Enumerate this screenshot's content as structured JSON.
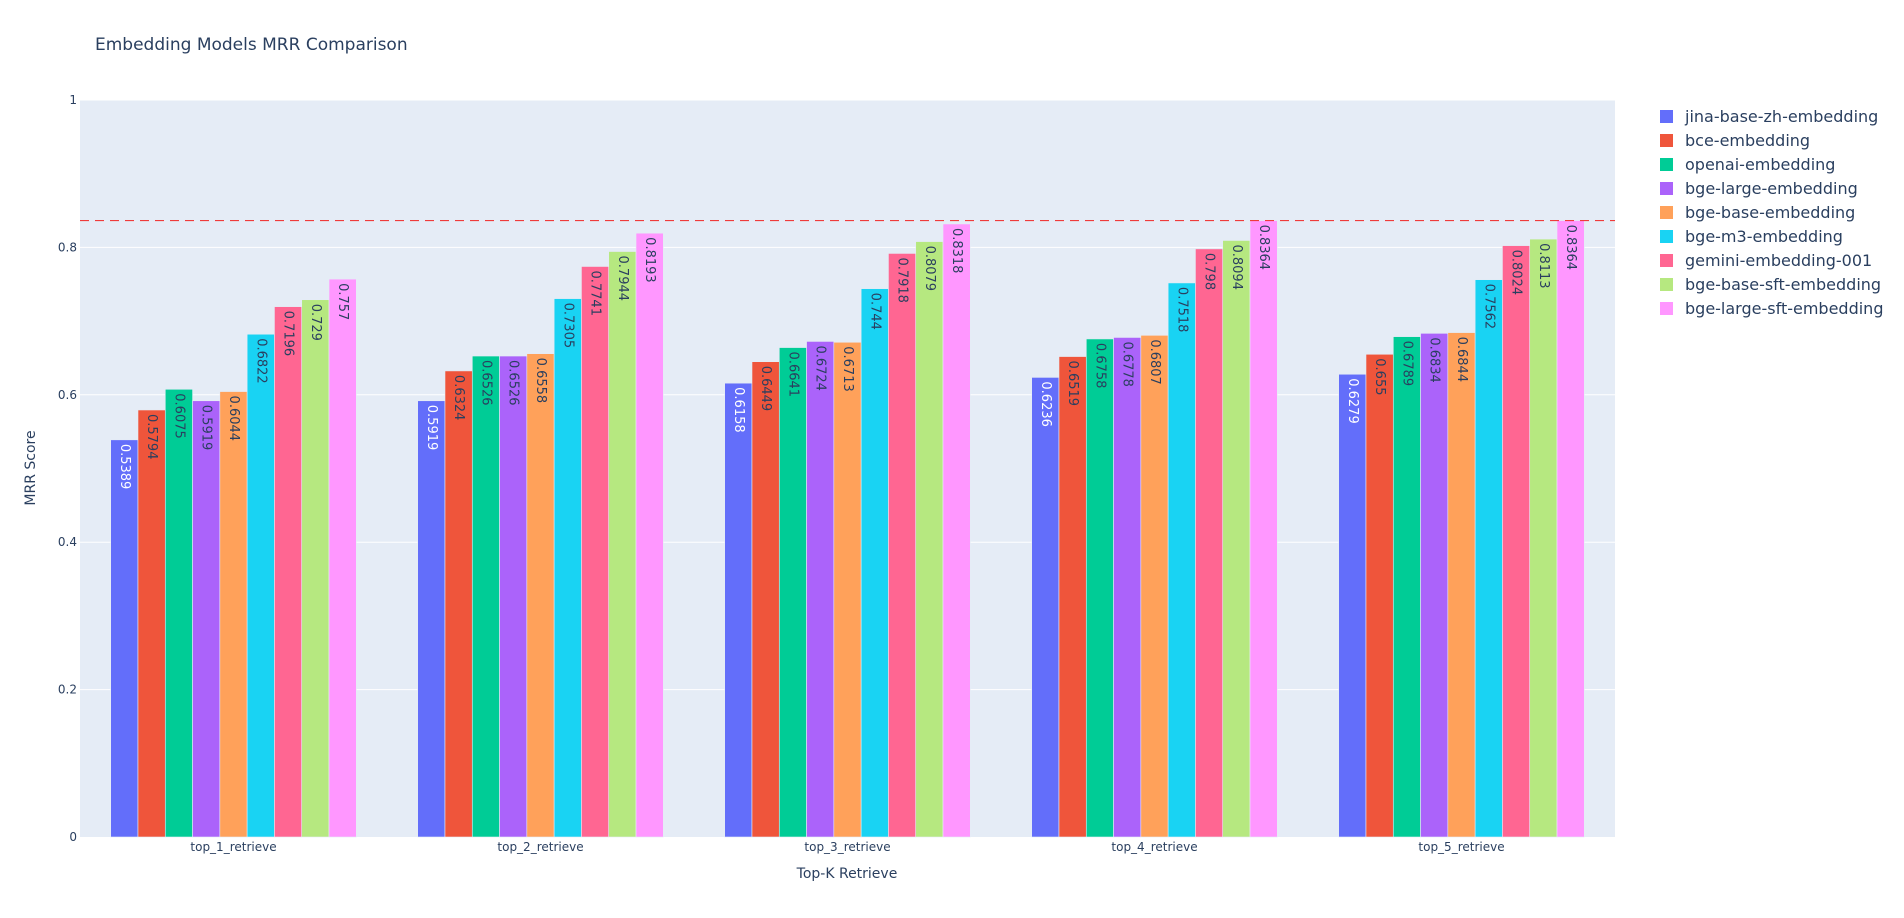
{
  "chart_data": {
    "type": "bar",
    "title": "Embedding Models MRR Comparison",
    "xlabel": "Top-K Retrieve",
    "ylabel": "MRR Score",
    "ylim": [
      0,
      1
    ],
    "yticks": [
      "0",
      "0.2",
      "0.4",
      "0.6",
      "0.8",
      "1"
    ],
    "categories": [
      "top_1_retrieve",
      "top_2_retrieve",
      "top_3_retrieve",
      "top_4_retrieve",
      "top_5_retrieve"
    ],
    "reference_line": {
      "value": 0.8364,
      "color": "#ef3b3b",
      "style": "dashed"
    },
    "legend_position": "right",
    "series": [
      {
        "name": "jina-base-zh-embedding",
        "color": "#636efa",
        "values": [
          0.5389,
          0.5919,
          0.6158,
          0.6236,
          0.6279
        ],
        "labels": [
          "0.5389",
          "0.5919",
          "0.6158",
          "0.6236",
          "0.6279"
        ]
      },
      {
        "name": "bce-embedding",
        "color": "#ef553b",
        "values": [
          0.5794,
          0.6324,
          0.6449,
          0.6519,
          0.655
        ],
        "labels": [
          "0.5794",
          "0.6324",
          "0.6449",
          "0.6519",
          "0.655"
        ]
      },
      {
        "name": "openai-embedding",
        "color": "#00cc96",
        "values": [
          0.6075,
          0.6526,
          0.6641,
          0.6758,
          0.6789
        ],
        "labels": [
          "0.6075",
          "0.6526",
          "0.6641",
          "0.6758",
          "0.6789"
        ]
      },
      {
        "name": "bge-large-embedding",
        "color": "#ab63fa",
        "values": [
          0.5919,
          0.6526,
          0.6724,
          0.6778,
          0.6834
        ],
        "labels": [
          "0.5919",
          "0.6526",
          "0.6724",
          "0.6778",
          "0.6834"
        ]
      },
      {
        "name": "bge-base-embedding",
        "color": "#ffa15a",
        "values": [
          0.6044,
          0.6558,
          0.6713,
          0.6807,
          0.6844
        ],
        "labels": [
          "0.6044",
          "0.6558",
          "0.6713",
          "0.6807",
          "0.6844"
        ]
      },
      {
        "name": "bge-m3-embedding",
        "color": "#19d3f3",
        "values": [
          0.6822,
          0.7305,
          0.744,
          0.7518,
          0.7562
        ],
        "labels": [
          "0.6822",
          "0.7305",
          "0.744",
          "0.7518",
          "0.7562"
        ]
      },
      {
        "name": "gemini-embedding-001",
        "color": "#ff6692",
        "values": [
          0.7196,
          0.7741,
          0.7918,
          0.798,
          0.8024
        ],
        "labels": [
          "0.7196",
          "0.7741",
          "0.7918",
          "0.798",
          "0.8024"
        ]
      },
      {
        "name": "bge-base-sft-embedding",
        "color": "#b6e880",
        "values": [
          0.729,
          0.7944,
          0.8079,
          0.8094,
          0.8113
        ],
        "labels": [
          "0.729",
          "0.7944",
          "0.8079",
          "0.8094",
          "0.8113"
        ]
      },
      {
        "name": "bge-large-sft-embedding",
        "color": "#ff97ff",
        "values": [
          0.757,
          0.8193,
          0.8318,
          0.8364,
          0.8364
        ],
        "labels": [
          "0.757",
          "0.8193",
          "0.8318",
          "0.8364",
          "0.8364"
        ]
      }
    ]
  }
}
